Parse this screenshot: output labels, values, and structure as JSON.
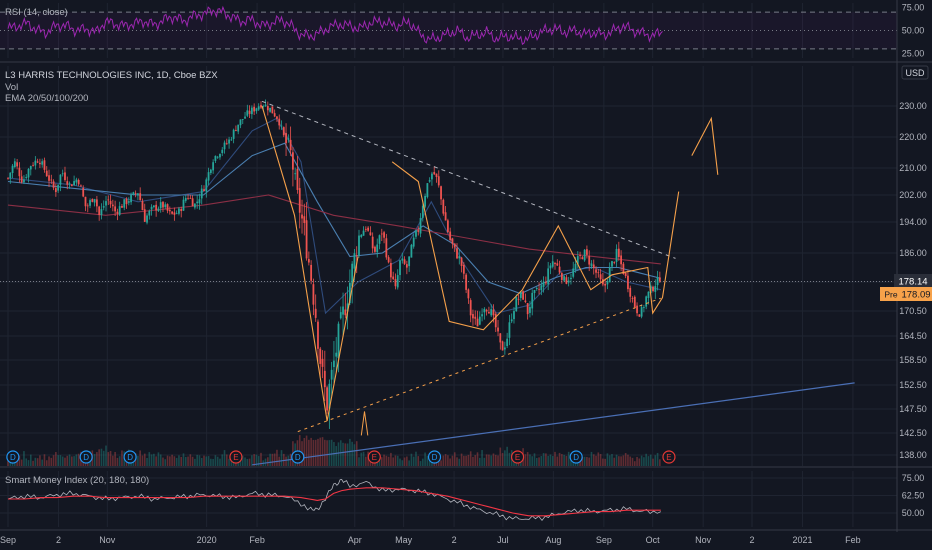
{
  "colors": {
    "background": "#131722",
    "grid": "#1f2431",
    "up": "#26a69a",
    "down": "#ef5350",
    "rsi": "#9c27b0",
    "smi_fast": "#b2b5be",
    "smi_slow": "#f23645",
    "trend_blue": "#4a6fb5",
    "drawing_orange": "#f5a04a",
    "ema_20": "#2f4b7c",
    "ema_50": "#4a7fb0",
    "ema_200": "#8b2f45",
    "event_dividend": "#2196f3",
    "event_earnings": "#e53935",
    "price_label": "#2a2e39",
    "prev_label": "#f7a24a"
  },
  "header": {
    "rsi_label": "RSI (14, close)",
    "symbol_line": "L3 HARRIS TECHNOLOGIES INC, 1D, Cboe BZX",
    "vol_label": "Vol",
    "ema_label": "EMA 20/50/100/200",
    "smi_label": "Smart Money Index (20, 180, 180)",
    "currency": "USD"
  },
  "price_labels": {
    "last": "178.14",
    "prev_tag": "Pre",
    "prev": "178.09"
  },
  "chart_data": [
    {
      "type": "line",
      "title": "RSI (14, close)",
      "ylim": [
        20,
        80
      ],
      "yticks": [
        "75.00",
        "50.00",
        "25.00"
      ],
      "levels": [
        70,
        50,
        30
      ],
      "x_days": [
        0,
        6,
        12,
        18,
        24,
        30,
        36,
        42,
        48,
        54,
        60,
        66,
        72,
        78,
        84,
        90,
        96,
        102,
        108,
        114,
        120,
        126,
        132,
        138,
        144,
        150,
        156,
        162,
        168,
        174,
        180,
        186,
        192,
        198,
        204,
        210,
        216,
        222,
        228,
        234,
        240,
        246,
        252,
        258,
        264,
        270,
        276,
        282,
        288,
        294,
        300,
        306,
        312,
        318,
        324,
        330,
        336,
        342,
        348,
        354,
        360,
        366,
        372,
        378,
        384,
        390,
        396,
        402
      ],
      "values": [
        52,
        55,
        58,
        50,
        48,
        56,
        55,
        50,
        52,
        48,
        60,
        57,
        55,
        58,
        60,
        56,
        62,
        65,
        60,
        66,
        68,
        72,
        70,
        64,
        60,
        62,
        55,
        58,
        62,
        55,
        45,
        44,
        48,
        54,
        57,
        55,
        52,
        58,
        60,
        57,
        55,
        60,
        48,
        40,
        42,
        46,
        50,
        42,
        45,
        48,
        41,
        44,
        42,
        40,
        45,
        50,
        52,
        48,
        50,
        46,
        48,
        45,
        50,
        55,
        50,
        47,
        44,
        49
      ]
    },
    {
      "type": "candlestick",
      "title": "L3 HARRIS TECHNOLOGIES INC, 1D, Cboe BZX",
      "ylabel": "USD",
      "ylim": [
        134,
        238
      ],
      "yticks": [
        "230.00",
        "220.00",
        "210.00",
        "202.00",
        "194.00",
        "186.00",
        "178.00",
        "170.50",
        "164.50",
        "158.50",
        "152.50",
        "147.50",
        "142.50",
        "138.00"
      ],
      "xticks": [
        {
          "label": "Sep",
          "day": 0
        },
        {
          "label": "2",
          "day": 31
        },
        {
          "label": "Nov",
          "day": 61
        },
        {
          "label": "2020",
          "day": 122
        },
        {
          "label": "Feb",
          "day": 153
        },
        {
          "label": "Apr",
          "day": 213
        },
        {
          "label": "May",
          "day": 243
        },
        {
          "label": "2",
          "day": 274
        },
        {
          "label": "Jul",
          "day": 304
        },
        {
          "label": "Aug",
          "day": 335
        },
        {
          "label": "Sep",
          "day": 366
        },
        {
          "label": "Oct",
          "day": 396
        },
        {
          "label": "Nov",
          "day": 427
        },
        {
          "label": "2",
          "day": 457
        },
        {
          "label": "2021",
          "day": 488
        },
        {
          "label": "Feb",
          "day": 519
        }
      ],
      "last_day": 401,
      "close_path": [
        [
          0,
          207
        ],
        [
          4,
          212
        ],
        [
          9,
          206
        ],
        [
          14,
          211
        ],
        [
          19,
          213
        ],
        [
          24,
          208
        ],
        [
          29,
          203
        ],
        [
          33,
          209
        ],
        [
          38,
          205
        ],
        [
          43,
          207
        ],
        [
          48,
          198
        ],
        [
          53,
          202
        ],
        [
          56,
          196
        ],
        [
          61,
          201
        ],
        [
          66,
          197
        ],
        [
          70,
          199
        ],
        [
          75,
          201
        ],
        [
          80,
          203
        ],
        [
          84,
          195
        ],
        [
          89,
          198
        ],
        [
          95,
          199
        ],
        [
          100,
          196
        ],
        [
          105,
          197
        ],
        [
          110,
          202
        ],
        [
          115,
          199
        ],
        [
          121,
          205
        ],
        [
          126,
          213
        ],
        [
          131,
          216
        ],
        [
          136,
          219
        ],
        [
          141,
          224
        ],
        [
          146,
          227
        ],
        [
          151,
          229
        ],
        [
          156,
          231
        ],
        [
          161,
          229
        ],
        [
          166,
          226
        ],
        [
          170,
          219
        ],
        [
          174,
          214
        ],
        [
          177,
          203
        ],
        [
          180,
          196
        ],
        [
          183,
          189
        ],
        [
          186,
          180
        ],
        [
          189,
          170
        ],
        [
          192,
          158
        ],
        [
          194,
          152
        ],
        [
          196,
          149
        ],
        [
          199,
          155
        ],
        [
          202,
          162
        ],
        [
          206,
          170
        ],
        [
          210,
          178
        ],
        [
          215,
          190
        ],
        [
          220,
          193
        ],
        [
          225,
          186
        ],
        [
          230,
          192
        ],
        [
          234,
          182
        ],
        [
          238,
          176
        ],
        [
          241,
          184
        ],
        [
          245,
          182
        ],
        [
          249,
          189
        ],
        [
          252,
          192
        ],
        [
          255,
          200
        ],
        [
          258,
          206
        ],
        [
          261,
          209
        ],
        [
          264,
          206
        ],
        [
          267,
          198
        ],
        [
          271,
          190
        ],
        [
          275,
          186
        ],
        [
          278,
          184
        ],
        [
          281,
          177
        ],
        [
          284,
          170
        ],
        [
          288,
          167
        ],
        [
          292,
          172
        ],
        [
          296,
          171
        ],
        [
          300,
          166
        ],
        [
          303,
          161
        ],
        [
          306,
          163
        ],
        [
          309,
          169
        ],
        [
          312,
          173
        ],
        [
          316,
          175
        ],
        [
          319,
          170
        ],
        [
          322,
          174
        ],
        [
          326,
          176
        ],
        [
          330,
          178
        ],
        [
          334,
          184
        ],
        [
          338,
          182
        ],
        [
          342,
          178
        ],
        [
          346,
          180
        ],
        [
          350,
          184
        ],
        [
          354,
          186
        ],
        [
          358,
          183
        ],
        [
          362,
          180
        ],
        [
          366,
          176
        ],
        [
          370,
          182
        ],
        [
          374,
          186
        ],
        [
          378,
          181
        ],
        [
          381,
          177
        ],
        [
          384,
          173
        ],
        [
          386,
          171
        ],
        [
          389,
          170
        ],
        [
          392,
          174
        ],
        [
          395,
          176
        ],
        [
          398,
          178
        ],
        [
          401,
          178.14
        ]
      ],
      "ema_20_path": [
        [
          0,
          207
        ],
        [
          40,
          205
        ],
        [
          80,
          200
        ],
        [
          120,
          203
        ],
        [
          150,
          222
        ],
        [
          165,
          226
        ],
        [
          180,
          212
        ],
        [
          195,
          170
        ],
        [
          215,
          178
        ],
        [
          240,
          184
        ],
        [
          260,
          200
        ],
        [
          280,
          183
        ],
        [
          300,
          170
        ],
        [
          320,
          172
        ],
        [
          340,
          181
        ],
        [
          360,
          182
        ],
        [
          380,
          178
        ],
        [
          401,
          176
        ]
      ],
      "ema_50_path": [
        [
          0,
          206
        ],
        [
          40,
          204
        ],
        [
          80,
          202
        ],
        [
          120,
          202
        ],
        [
          150,
          214
        ],
        [
          170,
          218
        ],
        [
          190,
          200
        ],
        [
          210,
          185
        ],
        [
          230,
          186
        ],
        [
          255,
          193
        ],
        [
          275,
          188
        ],
        [
          295,
          178
        ],
        [
          315,
          175
        ],
        [
          335,
          179
        ],
        [
          355,
          182
        ],
        [
          375,
          182
        ],
        [
          401,
          179
        ]
      ],
      "ema_200_path": [
        [
          0,
          199
        ],
        [
          60,
          196
        ],
        [
          120,
          199
        ],
        [
          160,
          202
        ],
        [
          200,
          196
        ],
        [
          240,
          193
        ],
        [
          280,
          190
        ],
        [
          320,
          187
        ],
        [
          360,
          185
        ],
        [
          401,
          183
        ]
      ],
      "volume": [
        3,
        4,
        3,
        5,
        4,
        3,
        4,
        6,
        4,
        3,
        4,
        3,
        5,
        4,
        3,
        4,
        5,
        3,
        4,
        4,
        6,
        5,
        4,
        5,
        3,
        4,
        5,
        6,
        4,
        5,
        7,
        5,
        6,
        5,
        4,
        5,
        6,
        7,
        5,
        6,
        9,
        7,
        8,
        10,
        7,
        8,
        6,
        7,
        5,
        6,
        8,
        6,
        5,
        7,
        6,
        5,
        4,
        5,
        6,
        5,
        4,
        5,
        7,
        6,
        5,
        4,
        5,
        6,
        5,
        4,
        5,
        4,
        6,
        5,
        4,
        3,
        4,
        5,
        4,
        5,
        6,
        5,
        4,
        5,
        4,
        3,
        4,
        5
      ],
      "events": [
        {
          "label": "D",
          "kind": "dividend",
          "day": 3
        },
        {
          "label": "D",
          "kind": "dividend",
          "day": 48
        },
        {
          "label": "D",
          "kind": "dividend",
          "day": 75
        },
        {
          "label": "E",
          "kind": "earnings",
          "day": 140
        },
        {
          "label": "D",
          "kind": "dividend",
          "day": 178
        },
        {
          "label": "E",
          "kind": "earnings",
          "day": 225
        },
        {
          "label": "D",
          "kind": "dividend",
          "day": 262
        },
        {
          "label": "E",
          "kind": "earnings",
          "day": 313
        },
        {
          "label": "D",
          "kind": "dividend",
          "day": 349
        },
        {
          "label": "E",
          "kind": "earnings",
          "day": 406
        }
      ],
      "last_price": 178.14,
      "prev_close": 178.09
    },
    {
      "type": "line",
      "title": "Smart Money Index (20, 180, 180)",
      "ylim": [
        40,
        80
      ],
      "yticks": [
        "75.00",
        "62.50",
        "50.00"
      ],
      "x_days": [
        0,
        10,
        20,
        30,
        40,
        50,
        60,
        70,
        80,
        90,
        100,
        110,
        120,
        130,
        140,
        150,
        160,
        170,
        180,
        185,
        190,
        195,
        200,
        205,
        210,
        220,
        230,
        240,
        250,
        260,
        270,
        280,
        290,
        300,
        310,
        320,
        330,
        340,
        350,
        360,
        370,
        380,
        390,
        401
      ],
      "fast": [
        60,
        62,
        61,
        63,
        64,
        62,
        60,
        61,
        62,
        60,
        61,
        62,
        63,
        62,
        61,
        64,
        63,
        62,
        57,
        52,
        53,
        60,
        70,
        74,
        69,
        72,
        66,
        67,
        66,
        64,
        60,
        56,
        52,
        49,
        46,
        46,
        47,
        50,
        52,
        51,
        52,
        53,
        51,
        51
      ],
      "slow": [
        60,
        60,
        61,
        61,
        62,
        62,
        61,
        61,
        61,
        61,
        61,
        61,
        62,
        62,
        62,
        62,
        62,
        62,
        61,
        60,
        59,
        60,
        64,
        66,
        67,
        68,
        68,
        67,
        66,
        64,
        62,
        59,
        56,
        53,
        50,
        48,
        48,
        49,
        50,
        51,
        51,
        52,
        52,
        52
      ]
    }
  ],
  "drawings": {
    "upper_trendline": [
      [
        156,
        231.5
      ],
      [
        410,
        184.5
      ]
    ],
    "lower_trendline": [
      [
        178,
        142.8
      ],
      [
        401,
        173.8
      ]
    ],
    "long_trendline": [
      [
        150,
        136
      ],
      [
        520,
        153
      ]
    ],
    "zigzag": [
      [
        156,
        230
      ],
      [
        176,
        196
      ],
      [
        196,
        145
      ],
      [
        215,
        185
      ],
      [
        236,
        212
      ],
      [
        252,
        206
      ],
      [
        271,
        168
      ],
      [
        292,
        166
      ],
      [
        316,
        176
      ],
      [
        338,
        193
      ],
      [
        358,
        176
      ],
      [
        371,
        180
      ],
      [
        393,
        182
      ],
      [
        396,
        170
      ],
      [
        402,
        174
      ],
      [
        412,
        203
      ],
      [
        420,
        214
      ],
      [
        432,
        226
      ],
      [
        436,
        208
      ]
    ],
    "zigzag_gaps": [
      3,
      15
    ],
    "abc_mark": [
      [
        217,
        142
      ],
      [
        219,
        147
      ],
      [
        221,
        142
      ]
    ]
  }
}
